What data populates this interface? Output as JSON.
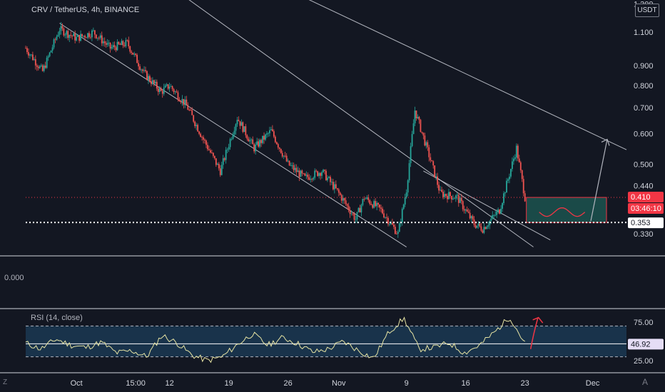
{
  "header": {
    "symbol_title": "CRV / TetherUS, 4h, BINANCE",
    "currency_button": "USDT"
  },
  "price_axis": {
    "ticks": [
      "1.300",
      "1.100",
      "0.900",
      "0.800",
      "0.700",
      "0.600",
      "0.500",
      "0.440",
      "0.330"
    ]
  },
  "badges": {
    "last_price": "0.410",
    "countdown": "03:46:10",
    "support_level": "0.353",
    "rsi_value": "46.92"
  },
  "volume_pane": {
    "label": "0.000"
  },
  "rsi_pane": {
    "label": "RSI (14, close)",
    "ticks": [
      "75.00",
      "25.00"
    ],
    "upper_band": 70,
    "lower_band": 30,
    "mid_line": 46.92
  },
  "time_axis": {
    "labels": [
      "Oct",
      "15:00",
      "12",
      "19",
      "26",
      "Nov",
      "9",
      "16",
      "23",
      "Dec"
    ]
  },
  "chart_data": {
    "type": "candlestick",
    "title": "CRV / TetherUS, 4h, BINANCE",
    "y_scale": "log",
    "ylim": [
      0.31,
      1.3
    ],
    "x_range": [
      "2021-09-25",
      "2021-12-05"
    ],
    "price_path": [
      [
        "2021-09-25",
        1.0
      ],
      [
        "2021-09-27",
        0.87
      ],
      [
        "2021-09-29",
        1.12
      ],
      [
        "2021-10-01",
        1.06
      ],
      [
        "2021-10-03",
        1.1
      ],
      [
        "2021-10-05",
        1.0
      ],
      [
        "2021-10-07",
        1.03
      ],
      [
        "2021-10-09",
        0.86
      ],
      [
        "2021-10-11",
        0.77
      ],
      [
        "2021-10-12",
        0.8
      ],
      [
        "2021-10-14",
        0.71
      ],
      [
        "2021-10-16",
        0.58
      ],
      [
        "2021-10-18",
        0.48
      ],
      [
        "2021-10-20",
        0.66
      ],
      [
        "2021-10-22",
        0.55
      ],
      [
        "2021-10-24",
        0.61
      ],
      [
        "2021-10-26",
        0.5
      ],
      [
        "2021-10-28",
        0.46
      ],
      [
        "2021-10-30",
        0.48
      ],
      [
        "2021-11-01",
        0.42
      ],
      [
        "2021-11-03",
        0.36
      ],
      [
        "2021-11-04",
        0.41
      ],
      [
        "2021-11-06",
        0.38
      ],
      [
        "2021-11-08",
        0.33
      ],
      [
        "2021-11-09",
        0.43
      ],
      [
        "2021-11-10",
        0.69
      ],
      [
        "2021-11-12",
        0.5
      ],
      [
        "2021-11-13",
        0.42
      ],
      [
        "2021-11-15",
        0.41
      ],
      [
        "2021-11-17",
        0.35
      ],
      [
        "2021-11-18",
        0.34
      ],
      [
        "2021-11-20",
        0.38
      ],
      [
        "2021-11-22",
        0.55
      ],
      [
        "2021-11-23",
        0.41
      ]
    ],
    "last_price": 0.41,
    "support_level": 0.353,
    "forecast": {
      "zone_low": 0.353,
      "zone_high": 0.41,
      "arrow_target": 0.58
    },
    "rsi": {
      "name": "RSI (14, close)",
      "bands": [
        30,
        70
      ],
      "last": 46.92,
      "values": [
        48,
        40,
        53,
        45,
        42,
        49,
        35,
        38,
        30,
        58,
        48,
        32,
        25,
        30,
        46,
        60,
        45,
        55,
        47,
        36,
        40,
        50,
        38,
        28,
        62,
        80,
        40,
        42,
        48,
        35,
        45,
        62,
        82,
        47
      ]
    }
  },
  "colors": {
    "background": "#131722",
    "up": "#26a69a",
    "down": "#ef5350",
    "channel": "#d1d4dc",
    "rsi_line": "#e8e5a4",
    "rsi_fill": "#1c3d5a",
    "zone_fill": "#1a4a48",
    "zone_border": "#f23645",
    "price_badge": "#f23645",
    "rsi_badge": "#e5ddf5"
  }
}
